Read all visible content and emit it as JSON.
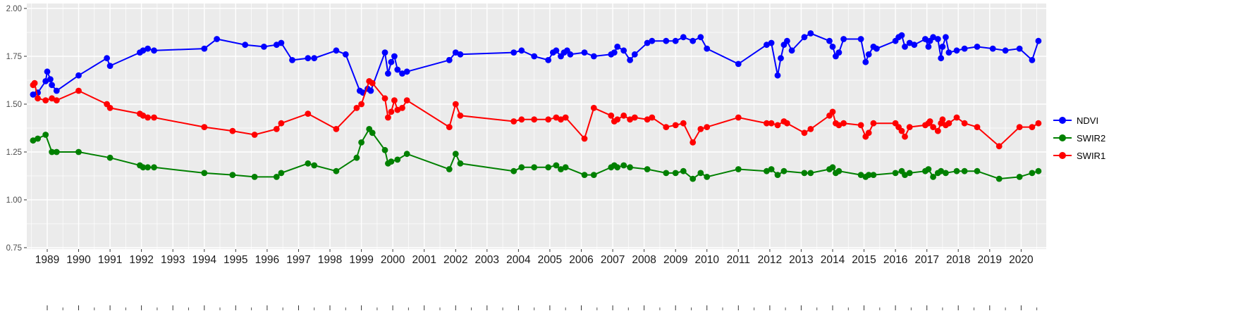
{
  "chart_data": {
    "type": "line",
    "title": "",
    "xlabel": "",
    "ylabel": "",
    "x_domain": [
      1988.35,
      2020.8
    ],
    "y_domain": [
      0.75,
      2.0
    ],
    "x_ticks": [
      1989,
      1990,
      1991,
      1992,
      1993,
      1994,
      1995,
      1996,
      1997,
      1998,
      1999,
      2000,
      2001,
      2002,
      2003,
      2004,
      2005,
      2006,
      2007,
      2008,
      2009,
      2010,
      2011,
      2012,
      2013,
      2014,
      2015,
      2016,
      2017,
      2018,
      2019,
      2020
    ],
    "y_ticks": [
      {
        "value": 2.0,
        "label": "2.00"
      },
      {
        "value": 1.75,
        "label": "1.75"
      },
      {
        "value": 1.5,
        "label": "1.50"
      },
      {
        "value": 1.25,
        "label": "1.25"
      },
      {
        "value": 1.0,
        "label": "1.00"
      },
      {
        "value": 0.75,
        "label": "0.75"
      }
    ],
    "grid": true,
    "legend_position": "right",
    "panel_background": "#EBEBEB",
    "grid_color": "#FFFFFF",
    "axis_text_color": "#4d4d4d",
    "x_text_color": "#1a1a1a",
    "series": [
      {
        "name": "NDVI",
        "color": "#0000FF",
        "points": [
          [
            1988.55,
            1.55
          ],
          [
            1988.7,
            1.56
          ],
          [
            1988.95,
            1.62
          ],
          [
            1989.0,
            1.67
          ],
          [
            1989.1,
            1.63
          ],
          [
            1989.15,
            1.6
          ],
          [
            1989.3,
            1.57
          ],
          [
            1990.0,
            1.65
          ],
          [
            1990.9,
            1.74
          ],
          [
            1991.0,
            1.7
          ],
          [
            1991.95,
            1.77
          ],
          [
            1992.05,
            1.78
          ],
          [
            1992.2,
            1.79
          ],
          [
            1992.4,
            1.78
          ],
          [
            1994.0,
            1.79
          ],
          [
            1994.4,
            1.84
          ],
          [
            1995.3,
            1.81
          ],
          [
            1995.9,
            1.8
          ],
          [
            1996.3,
            1.81
          ],
          [
            1996.45,
            1.82
          ],
          [
            1996.8,
            1.73
          ],
          [
            1997.3,
            1.74
          ],
          [
            1997.5,
            1.74
          ],
          [
            1998.2,
            1.78
          ],
          [
            1998.5,
            1.76
          ],
          [
            1998.95,
            1.57
          ],
          [
            1999.05,
            1.56
          ],
          [
            1999.2,
            1.58
          ],
          [
            1999.3,
            1.57
          ],
          [
            1999.75,
            1.77
          ],
          [
            1999.85,
            1.66
          ],
          [
            1999.95,
            1.72
          ],
          [
            2000.05,
            1.75
          ],
          [
            2000.15,
            1.68
          ],
          [
            2000.3,
            1.66
          ],
          [
            2000.45,
            1.67
          ],
          [
            2001.8,
            1.73
          ],
          [
            2002.0,
            1.77
          ],
          [
            2002.15,
            1.76
          ],
          [
            2003.85,
            1.77
          ],
          [
            2004.1,
            1.78
          ],
          [
            2004.5,
            1.75
          ],
          [
            2004.95,
            1.73
          ],
          [
            2005.1,
            1.77
          ],
          [
            2005.2,
            1.78
          ],
          [
            2005.35,
            1.75
          ],
          [
            2005.45,
            1.77
          ],
          [
            2005.55,
            1.78
          ],
          [
            2005.65,
            1.76
          ],
          [
            2006.1,
            1.77
          ],
          [
            2006.4,
            1.75
          ],
          [
            2006.95,
            1.76
          ],
          [
            2007.05,
            1.77
          ],
          [
            2007.15,
            1.8
          ],
          [
            2007.35,
            1.78
          ],
          [
            2007.55,
            1.73
          ],
          [
            2007.7,
            1.76
          ],
          [
            2008.1,
            1.82
          ],
          [
            2008.25,
            1.83
          ],
          [
            2008.7,
            1.83
          ],
          [
            2009.0,
            1.83
          ],
          [
            2009.25,
            1.85
          ],
          [
            2009.55,
            1.83
          ],
          [
            2009.8,
            1.85
          ],
          [
            2010.0,
            1.79
          ],
          [
            2011.0,
            1.71
          ],
          [
            2011.9,
            1.81
          ],
          [
            2012.05,
            1.82
          ],
          [
            2012.25,
            1.65
          ],
          [
            2012.35,
            1.74
          ],
          [
            2012.45,
            1.81
          ],
          [
            2012.55,
            1.83
          ],
          [
            2012.7,
            1.78
          ],
          [
            2013.1,
            1.85
          ],
          [
            2013.3,
            1.87
          ],
          [
            2013.9,
            1.83
          ],
          [
            2014.0,
            1.8
          ],
          [
            2014.1,
            1.75
          ],
          [
            2014.2,
            1.77
          ],
          [
            2014.35,
            1.84
          ],
          [
            2014.9,
            1.84
          ],
          [
            2015.05,
            1.72
          ],
          [
            2015.15,
            1.76
          ],
          [
            2015.3,
            1.8
          ],
          [
            2015.4,
            1.79
          ],
          [
            2016.0,
            1.83
          ],
          [
            2016.1,
            1.85
          ],
          [
            2016.2,
            1.86
          ],
          [
            2016.3,
            1.8
          ],
          [
            2016.45,
            1.82
          ],
          [
            2016.6,
            1.81
          ],
          [
            2016.95,
            1.84
          ],
          [
            2017.05,
            1.8
          ],
          [
            2017.1,
            1.83
          ],
          [
            2017.2,
            1.85
          ],
          [
            2017.35,
            1.84
          ],
          [
            2017.45,
            1.74
          ],
          [
            2017.5,
            1.8
          ],
          [
            2017.6,
            1.85
          ],
          [
            2017.7,
            1.77
          ],
          [
            2017.95,
            1.78
          ],
          [
            2018.2,
            1.79
          ],
          [
            2018.6,
            1.8
          ],
          [
            2019.1,
            1.79
          ],
          [
            2019.5,
            1.78
          ],
          [
            2019.95,
            1.79
          ],
          [
            2020.35,
            1.73
          ],
          [
            2020.55,
            1.83
          ]
        ]
      },
      {
        "name": "SWIR2",
        "color": "#008000",
        "points": [
          [
            1988.55,
            1.31
          ],
          [
            1988.7,
            1.32
          ],
          [
            1988.95,
            1.34
          ],
          [
            1989.15,
            1.25
          ],
          [
            1989.3,
            1.25
          ],
          [
            1990.0,
            1.25
          ],
          [
            1991.0,
            1.22
          ],
          [
            1991.95,
            1.18
          ],
          [
            1992.05,
            1.17
          ],
          [
            1992.2,
            1.17
          ],
          [
            1992.4,
            1.17
          ],
          [
            1994.0,
            1.14
          ],
          [
            1994.9,
            1.13
          ],
          [
            1995.6,
            1.12
          ],
          [
            1996.3,
            1.12
          ],
          [
            1996.45,
            1.14
          ],
          [
            1997.3,
            1.19
          ],
          [
            1997.5,
            1.18
          ],
          [
            1998.2,
            1.15
          ],
          [
            1998.85,
            1.22
          ],
          [
            1999.0,
            1.3
          ],
          [
            1999.25,
            1.37
          ],
          [
            1999.35,
            1.35
          ],
          [
            1999.75,
            1.26
          ],
          [
            1999.85,
            1.19
          ],
          [
            1999.95,
            1.2
          ],
          [
            2000.15,
            1.21
          ],
          [
            2000.45,
            1.24
          ],
          [
            2001.8,
            1.16
          ],
          [
            2002.0,
            1.24
          ],
          [
            2002.15,
            1.19
          ],
          [
            2003.85,
            1.15
          ],
          [
            2004.1,
            1.17
          ],
          [
            2004.5,
            1.17
          ],
          [
            2004.95,
            1.17
          ],
          [
            2005.2,
            1.18
          ],
          [
            2005.35,
            1.16
          ],
          [
            2005.5,
            1.17
          ],
          [
            2006.1,
            1.13
          ],
          [
            2006.4,
            1.13
          ],
          [
            2006.95,
            1.17
          ],
          [
            2007.05,
            1.18
          ],
          [
            2007.15,
            1.17
          ],
          [
            2007.35,
            1.18
          ],
          [
            2007.55,
            1.17
          ],
          [
            2008.1,
            1.16
          ],
          [
            2008.7,
            1.14
          ],
          [
            2009.0,
            1.14
          ],
          [
            2009.25,
            1.15
          ],
          [
            2009.55,
            1.11
          ],
          [
            2009.8,
            1.14
          ],
          [
            2010.0,
            1.12
          ],
          [
            2011.0,
            1.16
          ],
          [
            2011.9,
            1.15
          ],
          [
            2012.05,
            1.16
          ],
          [
            2012.25,
            1.13
          ],
          [
            2012.45,
            1.15
          ],
          [
            2013.1,
            1.14
          ],
          [
            2013.3,
            1.14
          ],
          [
            2013.9,
            1.16
          ],
          [
            2014.0,
            1.17
          ],
          [
            2014.1,
            1.14
          ],
          [
            2014.2,
            1.15
          ],
          [
            2014.9,
            1.13
          ],
          [
            2015.05,
            1.12
          ],
          [
            2015.15,
            1.13
          ],
          [
            2015.3,
            1.13
          ],
          [
            2016.0,
            1.14
          ],
          [
            2016.2,
            1.15
          ],
          [
            2016.3,
            1.13
          ],
          [
            2016.45,
            1.14
          ],
          [
            2016.95,
            1.15
          ],
          [
            2017.05,
            1.16
          ],
          [
            2017.2,
            1.12
          ],
          [
            2017.35,
            1.14
          ],
          [
            2017.45,
            1.15
          ],
          [
            2017.6,
            1.14
          ],
          [
            2017.95,
            1.15
          ],
          [
            2018.2,
            1.15
          ],
          [
            2018.6,
            1.15
          ],
          [
            2019.3,
            1.11
          ],
          [
            2019.95,
            1.12
          ],
          [
            2020.35,
            1.14
          ],
          [
            2020.55,
            1.15
          ]
        ]
      },
      {
        "name": "SWIR1",
        "color": "#FF0000",
        "points": [
          [
            1988.55,
            1.6
          ],
          [
            1988.6,
            1.61
          ],
          [
            1988.7,
            1.53
          ],
          [
            1988.95,
            1.52
          ],
          [
            1989.15,
            1.53
          ],
          [
            1989.3,
            1.52
          ],
          [
            1990.0,
            1.57
          ],
          [
            1990.9,
            1.5
          ],
          [
            1991.0,
            1.48
          ],
          [
            1991.95,
            1.45
          ],
          [
            1992.05,
            1.44
          ],
          [
            1992.2,
            1.43
          ],
          [
            1992.4,
            1.43
          ],
          [
            1994.0,
            1.38
          ],
          [
            1994.9,
            1.36
          ],
          [
            1995.6,
            1.34
          ],
          [
            1996.3,
            1.37
          ],
          [
            1996.45,
            1.4
          ],
          [
            1997.3,
            1.45
          ],
          [
            1998.2,
            1.37
          ],
          [
            1998.85,
            1.48
          ],
          [
            1999.0,
            1.5
          ],
          [
            1999.25,
            1.62
          ],
          [
            1999.35,
            1.61
          ],
          [
            1999.75,
            1.53
          ],
          [
            1999.85,
            1.43
          ],
          [
            1999.95,
            1.46
          ],
          [
            2000.05,
            1.52
          ],
          [
            2000.15,
            1.47
          ],
          [
            2000.3,
            1.48
          ],
          [
            2000.45,
            1.52
          ],
          [
            2001.8,
            1.38
          ],
          [
            2002.0,
            1.5
          ],
          [
            2002.15,
            1.44
          ],
          [
            2003.85,
            1.41
          ],
          [
            2004.1,
            1.42
          ],
          [
            2004.5,
            1.42
          ],
          [
            2004.95,
            1.42
          ],
          [
            2005.2,
            1.43
          ],
          [
            2005.35,
            1.42
          ],
          [
            2005.5,
            1.43
          ],
          [
            2006.1,
            1.32
          ],
          [
            2006.4,
            1.48
          ],
          [
            2006.95,
            1.44
          ],
          [
            2007.05,
            1.41
          ],
          [
            2007.15,
            1.42
          ],
          [
            2007.35,
            1.44
          ],
          [
            2007.55,
            1.42
          ],
          [
            2007.7,
            1.43
          ],
          [
            2008.1,
            1.42
          ],
          [
            2008.25,
            1.43
          ],
          [
            2008.7,
            1.38
          ],
          [
            2009.0,
            1.39
          ],
          [
            2009.25,
            1.4
          ],
          [
            2009.55,
            1.3
          ],
          [
            2009.8,
            1.37
          ],
          [
            2010.0,
            1.38
          ],
          [
            2011.0,
            1.43
          ],
          [
            2011.9,
            1.4
          ],
          [
            2012.05,
            1.4
          ],
          [
            2012.25,
            1.39
          ],
          [
            2012.45,
            1.41
          ],
          [
            2012.55,
            1.4
          ],
          [
            2013.1,
            1.35
          ],
          [
            2013.3,
            1.37
          ],
          [
            2013.9,
            1.44
          ],
          [
            2014.0,
            1.46
          ],
          [
            2014.1,
            1.4
          ],
          [
            2014.2,
            1.39
          ],
          [
            2014.35,
            1.4
          ],
          [
            2014.9,
            1.39
          ],
          [
            2015.05,
            1.33
          ],
          [
            2015.15,
            1.35
          ],
          [
            2015.3,
            1.4
          ],
          [
            2016.0,
            1.4
          ],
          [
            2016.1,
            1.38
          ],
          [
            2016.2,
            1.36
          ],
          [
            2016.3,
            1.33
          ],
          [
            2016.45,
            1.38
          ],
          [
            2016.95,
            1.39
          ],
          [
            2017.05,
            1.4
          ],
          [
            2017.1,
            1.41
          ],
          [
            2017.2,
            1.38
          ],
          [
            2017.35,
            1.36
          ],
          [
            2017.45,
            1.4
          ],
          [
            2017.5,
            1.42
          ],
          [
            2017.6,
            1.39
          ],
          [
            2017.7,
            1.4
          ],
          [
            2017.95,
            1.43
          ],
          [
            2018.2,
            1.4
          ],
          [
            2018.6,
            1.38
          ],
          [
            2019.3,
            1.28
          ],
          [
            2019.95,
            1.38
          ],
          [
            2020.35,
            1.38
          ],
          [
            2020.55,
            1.4
          ]
        ]
      }
    ]
  },
  "legend": {
    "items": [
      {
        "label": "NDVI"
      },
      {
        "label": "SWIR2"
      },
      {
        "label": "SWIR1"
      }
    ]
  }
}
